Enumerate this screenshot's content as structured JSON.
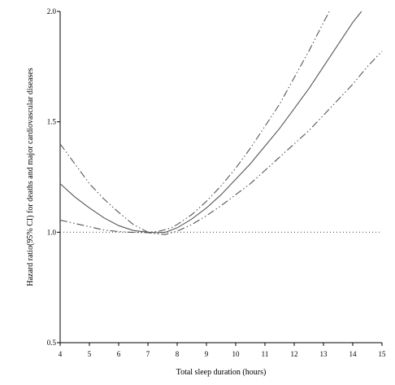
{
  "chart_data": {
    "type": "line",
    "title": "",
    "xlabel": "Total sleep duration (hours)",
    "ylabel": "Hazard ratio(95% CI) for deaths and major cardiovascular diseases",
    "xlim": [
      4,
      15
    ],
    "ylim": [
      0.5,
      2.0
    ],
    "xticks": [
      "4",
      "5",
      "6",
      "7",
      "8",
      "9",
      "10",
      "11",
      "12",
      "13",
      "14",
      "15"
    ],
    "yticks": [
      "0.5",
      "1.0",
      "1.5",
      "2.0"
    ],
    "grid": false,
    "legend": "none",
    "series": [
      {
        "line_style": "solid",
        "color": "#555555",
        "x": [
          4,
          4.5,
          5,
          5.5,
          6,
          6.5,
          7,
          7.3,
          7.6,
          8,
          8.5,
          9,
          9.5,
          10,
          10.5,
          11,
          11.5,
          12,
          12.5,
          13,
          13.5,
          14,
          14.3
        ],
        "y": [
          1.22,
          1.16,
          1.11,
          1.065,
          1.03,
          1.008,
          1.0,
          0.998,
          1.0,
          1.02,
          1.06,
          1.11,
          1.17,
          1.24,
          1.31,
          1.39,
          1.47,
          1.56,
          1.65,
          1.75,
          1.85,
          1.95,
          2.0
        ]
      },
      {
        "line_style": "dash-dot-dot",
        "color": "#555555",
        "x": [
          4,
          4.5,
          5,
          5.5,
          6,
          6.5,
          7,
          7.4,
          7.8,
          8,
          8.5,
          9,
          9.5,
          10,
          10.5,
          11,
          11.5,
          12,
          12.5,
          13,
          13.2
        ],
        "y": [
          1.4,
          1.31,
          1.22,
          1.15,
          1.09,
          1.035,
          1.0,
          1.005,
          1.02,
          1.035,
          1.08,
          1.14,
          1.21,
          1.29,
          1.38,
          1.48,
          1.58,
          1.7,
          1.82,
          1.95,
          2.0
        ]
      },
      {
        "line_style": "dash-dot-dot",
        "color": "#555555",
        "x": [
          4,
          4.5,
          5,
          5.5,
          6,
          6.5,
          7,
          7.3,
          7.6,
          8,
          8.5,
          9,
          9.5,
          10,
          10.5,
          11,
          11.5,
          12,
          12.5,
          13,
          13.5,
          14,
          14.5,
          15
        ],
        "y": [
          1.055,
          1.04,
          1.025,
          1.01,
          1.003,
          0.999,
          0.998,
          0.993,
          0.99,
          1.005,
          1.035,
          1.075,
          1.12,
          1.17,
          1.22,
          1.28,
          1.34,
          1.4,
          1.46,
          1.53,
          1.6,
          1.67,
          1.75,
          1.82
        ]
      },
      {
        "line_style": "dotted",
        "color": "#555555",
        "x": [
          4,
          15
        ],
        "y": [
          1.0,
          1.0
        ]
      }
    ]
  }
}
